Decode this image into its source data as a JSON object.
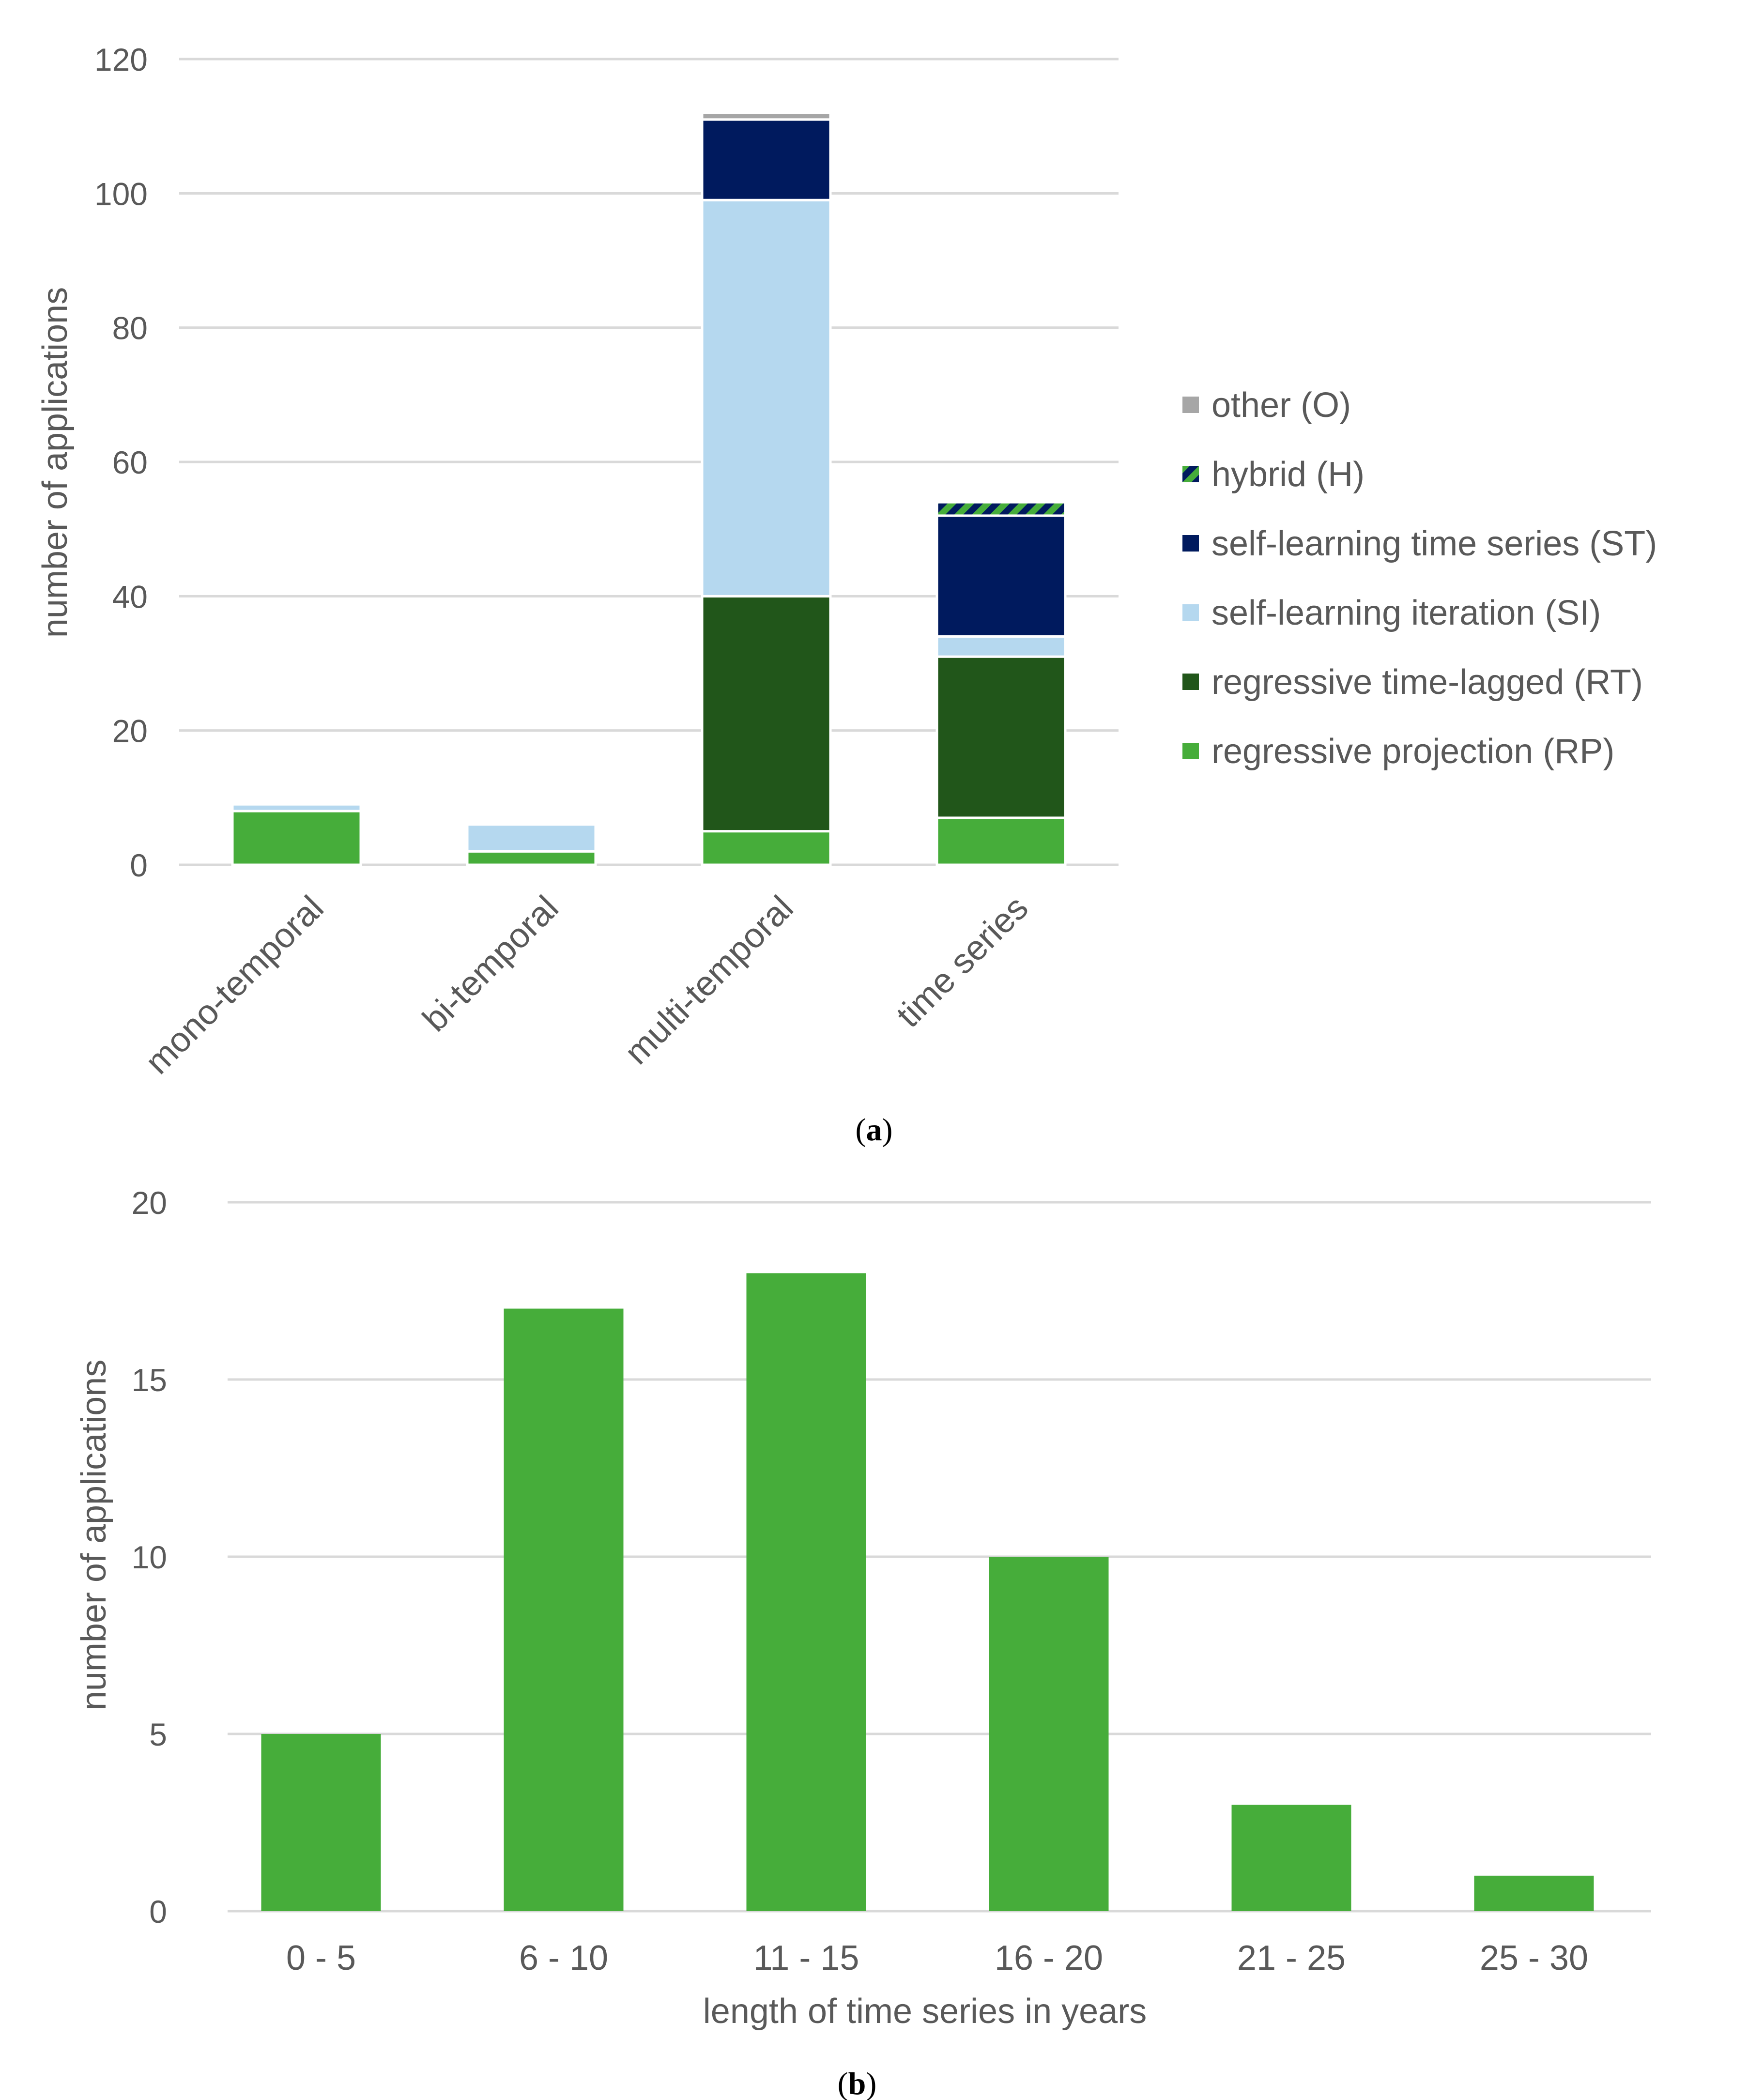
{
  "figure": {
    "label_a": "a",
    "label_b": "b"
  },
  "chart_data": [
    {
      "type": "bar",
      "stacked": true,
      "title": "",
      "xlabel": "",
      "ylabel": "number of applications",
      "ylim": [
        0,
        120
      ],
      "yticks": [
        0,
        20,
        40,
        60,
        80,
        100,
        120
      ],
      "grid": true,
      "legend_position": "right",
      "categories": [
        "mono-temporal",
        "bi-temporal",
        "multi-temporal",
        "time series"
      ],
      "series": [
        {
          "name": "regressive projection (RP)",
          "color": "#46ad3a",
          "values": [
            8,
            2,
            5,
            7
          ]
        },
        {
          "name": "regressive time-lagged (RT)",
          "color": "#21561a",
          "values": [
            0,
            0,
            35,
            24
          ]
        },
        {
          "name": "self-learning iteration (SI)",
          "color": "#b5d8ef",
          "values": [
            1,
            4,
            59,
            3
          ]
        },
        {
          "name": "self-learning time series (ST)",
          "color": "#001a5e",
          "values": [
            0,
            0,
            12,
            18
          ]
        },
        {
          "name": "hybrid (H)",
          "color": "#46ad3a",
          "color2": "#001a5e",
          "pattern": "stripes",
          "values": [
            0,
            0,
            0,
            2
          ]
        },
        {
          "name": "other (O)",
          "color": "#a6a6a6",
          "values": [
            0,
            0,
            1,
            0
          ]
        }
      ]
    },
    {
      "type": "bar",
      "title": "",
      "xlabel": "length of time series in years",
      "ylabel": "number of applications",
      "ylim": [
        0,
        20
      ],
      "yticks": [
        0,
        5,
        10,
        15,
        20
      ],
      "grid": true,
      "color": "#46ad3a",
      "categories": [
        "0 - 5",
        "6 - 10",
        "11 - 15",
        "16 - 20",
        "21 - 25",
        "25 - 30"
      ],
      "values": [
        5,
        17,
        18,
        10,
        3,
        1
      ]
    }
  ]
}
